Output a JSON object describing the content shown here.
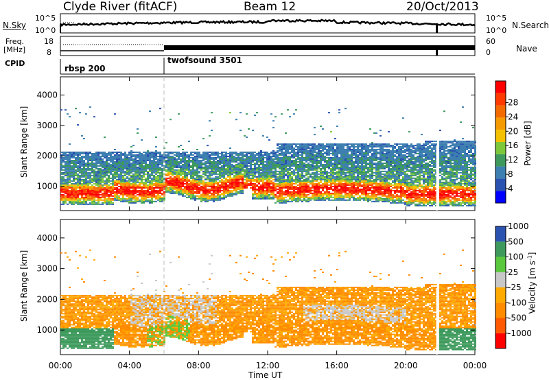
{
  "header": {
    "station": "Clyde River (fitACF)",
    "beam": "Beam 12",
    "date": "20/Oct/2013"
  },
  "top_panels": {
    "nsky_label": "N.Sky",
    "nsky_ticks": [
      "10^5",
      "10^0"
    ],
    "nsearch_label": "N.Search",
    "nsearch_ticks": [
      "10^5",
      "10^0"
    ],
    "freq_label": "Freq.",
    "freq_unit": "[MHz]",
    "freq_ticks": [
      "18",
      "8"
    ],
    "nave_label": "Nave",
    "nave_ticks": [
      "60",
      "0"
    ],
    "cpid_label": "CPID",
    "cpid_segments": [
      {
        "name": "rbsp 200",
        "start_hour": 0
      },
      {
        "name": "twofsound 3501",
        "start_hour": 6
      }
    ]
  },
  "x_axis": {
    "label": "Time UT",
    "ticks": [
      "00:00",
      "04:00",
      "08:00",
      "12:00",
      "16:00",
      "20:00",
      "00:00"
    ]
  },
  "chart_data": [
    {
      "type": "heatmap",
      "ylabel": "Slant Range [km]",
      "yticks": [
        1000,
        2000,
        3000,
        4000
      ],
      "ylim": [
        200,
        4600
      ],
      "xlim": [
        0,
        24
      ],
      "colorbar": {
        "label": "Power [dB]",
        "ticks": [
          4,
          8,
          12,
          16,
          20,
          24,
          28
        ],
        "colors": [
          "#0000ff",
          "#2a52b0",
          "#3c7fb0",
          "#3d9a5c",
          "#7dc83a",
          "#f5c000",
          "#f59a00",
          "#f56a00",
          "#ff3a00",
          "#ff0000"
        ]
      }
    },
    {
      "type": "heatmap",
      "ylabel": "Slant Range [km]",
      "yticks": [
        1000,
        2000,
        3000,
        4000
      ],
      "ylim": [
        200,
        4600
      ],
      "xlim": [
        0,
        24
      ],
      "colorbar": {
        "label": "Velocity [m s",
        "label_sup": "-1",
        "label_end": "]",
        "ticks": [
          "-1000",
          "-500",
          "-100",
          "-25",
          "25",
          "100",
          "500",
          "1000"
        ],
        "colors": [
          "#ff0000",
          "#ff5a00",
          "#ff8c00",
          "#ffaa00",
          "#c8c8c8",
          "#5ac83c",
          "#3d9a5c",
          "#2a52b0"
        ]
      }
    }
  ]
}
